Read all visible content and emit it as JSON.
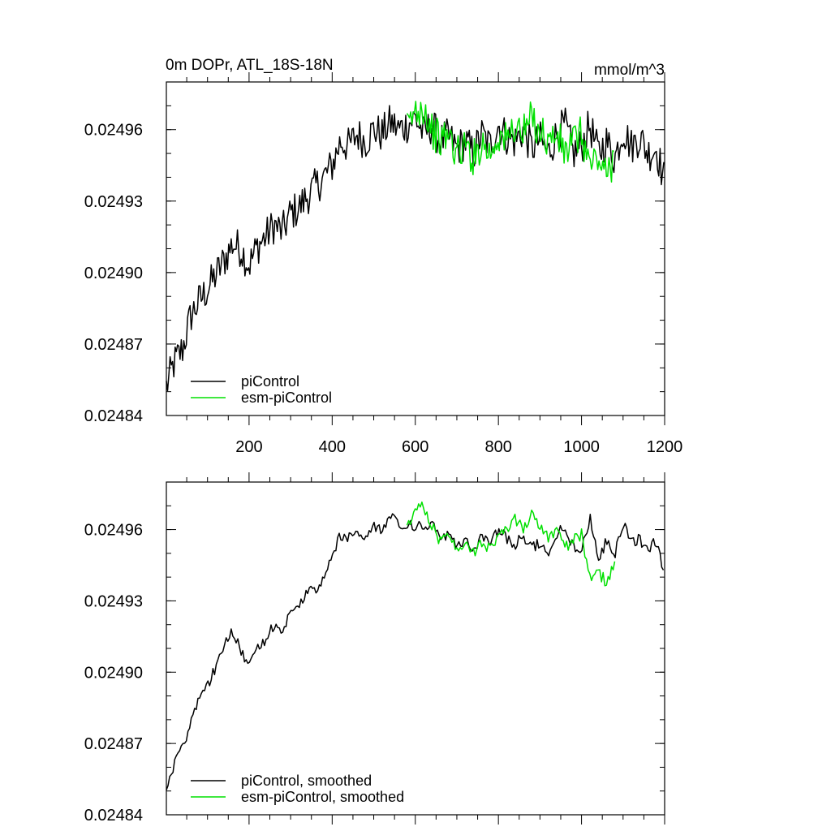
{
  "chart_data": [
    {
      "type": "line",
      "title": "0m DOPr, ATL_18S-18N",
      "units": "mmol/m^3",
      "xlim": [
        1,
        1200
      ],
      "ylim": [
        0.02484,
        0.02498
      ],
      "yticks": [
        0.02484,
        0.02487,
        0.0249,
        0.02493,
        0.02496
      ],
      "ytick_labels": [
        "0.02484",
        "0.02487",
        "0.02490",
        "0.02493",
        "0.02496"
      ],
      "xticks": [
        200,
        400,
        600,
        800,
        1000,
        1200
      ],
      "xtick_labels": [
        "200",
        "400",
        "600",
        "800",
        "1000",
        "1200"
      ],
      "legend_location": "bottom-left",
      "series": [
        {
          "name": "piControl",
          "color": "#000000",
          "smoothed": false,
          "x": [
            1,
            20,
            40,
            60,
            80,
            100,
            120,
            140,
            160,
            180,
            200,
            220,
            240,
            260,
            280,
            300,
            320,
            340,
            360,
            380,
            400,
            420,
            440,
            460,
            480,
            500,
            520,
            540,
            560,
            580,
            600,
            620,
            640,
            660,
            680,
            700,
            720,
            740,
            760,
            780,
            800,
            820,
            840,
            860,
            880,
            900,
            920,
            940,
            960,
            980,
            1000,
            1020,
            1040,
            1060,
            1080,
            1100,
            1120,
            1140,
            1160,
            1180,
            1200
          ],
          "y": [
            0.024852,
            0.024862,
            0.024868,
            0.024882,
            0.024888,
            0.024893,
            0.024899,
            0.024905,
            0.024912,
            0.02491,
            0.024903,
            0.024911,
            0.024915,
            0.02492,
            0.024917,
            0.024925,
            0.024927,
            0.024932,
            0.024936,
            0.02494,
            0.024945,
            0.024955,
            0.024953,
            0.024958,
            0.024955,
            0.02496,
            0.024958,
            0.024963,
            0.02496,
            0.024962,
            0.024965,
            0.024958,
            0.024962,
            0.024955,
            0.024957,
            0.024952,
            0.024955,
            0.02495,
            0.024958,
            0.024953,
            0.024962,
            0.024957,
            0.024955,
            0.02496,
            0.024952,
            0.024956,
            0.02495,
            0.024958,
            0.024962,
            0.02495,
            0.024953,
            0.024962,
            0.02495,
            0.024955,
            0.024948,
            0.02496,
            0.024953,
            0.024957,
            0.02495,
            0.024952,
            0.024938
          ]
        },
        {
          "name": "esm-piControl",
          "color": "#00e000",
          "smoothed": false,
          "x": [
            580,
            600,
            620,
            640,
            660,
            680,
            700,
            720,
            740,
            760,
            780,
            800,
            820,
            840,
            860,
            880,
            900,
            920,
            940,
            960,
            980,
            1000,
            1020,
            1040,
            1060,
            1080
          ],
          "y": [
            0.02496,
            0.024968,
            0.02497,
            0.02496,
            0.024955,
            0.024958,
            0.02495,
            0.024953,
            0.024948,
            0.024955,
            0.02495,
            0.024958,
            0.024955,
            0.024962,
            0.024958,
            0.024965,
            0.02496,
            0.024955,
            0.024958,
            0.02495,
            0.024955,
            0.024958,
            0.024945,
            0.024948,
            0.02494,
            0.02495
          ]
        }
      ]
    },
    {
      "type": "line",
      "title": "",
      "units": "",
      "xlim": [
        1,
        1200
      ],
      "ylim": [
        0.02484,
        0.02498
      ],
      "yticks": [
        0.02484,
        0.02487,
        0.0249,
        0.02493,
        0.02496
      ],
      "ytick_labels": [
        "0.02484",
        "0.02487",
        "0.02490",
        "0.02493",
        "0.02496"
      ],
      "xticks": [
        200,
        400,
        600,
        800,
        1000,
        1200
      ],
      "xtick_labels": [],
      "legend_location": "bottom-left",
      "series": [
        {
          "name": "piControl, smoothed",
          "color": "#000000",
          "smoothed": true,
          "x": [
            1,
            20,
            40,
            60,
            80,
            100,
            120,
            140,
            160,
            180,
            200,
            220,
            240,
            260,
            280,
            300,
            320,
            340,
            360,
            380,
            400,
            420,
            440,
            460,
            480,
            500,
            520,
            540,
            560,
            580,
            600,
            620,
            640,
            660,
            680,
            700,
            720,
            740,
            760,
            780,
            800,
            820,
            840,
            860,
            880,
            900,
            920,
            940,
            960,
            980,
            1000,
            1020,
            1040,
            1060,
            1080,
            1100,
            1120,
            1140,
            1160,
            1180,
            1200
          ],
          "y": [
            0.02485,
            0.024862,
            0.024868,
            0.02488,
            0.02489,
            0.024895,
            0.024902,
            0.024912,
            0.024918,
            0.02491,
            0.024902,
            0.02491,
            0.024914,
            0.02492,
            0.024918,
            0.024925,
            0.024928,
            0.024933,
            0.024935,
            0.02494,
            0.024948,
            0.024958,
            0.024956,
            0.02496,
            0.024956,
            0.024962,
            0.02496,
            0.024965,
            0.024962,
            0.024962,
            0.024962,
            0.02496,
            0.024963,
            0.024955,
            0.024958,
            0.024952,
            0.024956,
            0.02495,
            0.024958,
            0.024955,
            0.02496,
            0.024956,
            0.024954,
            0.024958,
            0.024952,
            0.024955,
            0.02495,
            0.024957,
            0.024962,
            0.024952,
            0.024953,
            0.024965,
            0.024948,
            0.024955,
            0.02495,
            0.024963,
            0.024955,
            0.024956,
            0.024952,
            0.024955,
            0.02494
          ]
        },
        {
          "name": "esm-piControl, smoothed",
          "color": "#00e000",
          "smoothed": true,
          "x": [
            580,
            600,
            620,
            640,
            660,
            680,
            700,
            720,
            740,
            760,
            780,
            800,
            820,
            840,
            860,
            880,
            900,
            920,
            940,
            960,
            980,
            1000,
            1020,
            1040,
            1060,
            1080
          ],
          "y": [
            0.02496,
            0.024968,
            0.02497,
            0.024962,
            0.024955,
            0.024957,
            0.024952,
            0.024954,
            0.02495,
            0.024955,
            0.024952,
            0.024958,
            0.02496,
            0.024965,
            0.02496,
            0.024966,
            0.024962,
            0.024956,
            0.02496,
            0.024952,
            0.024956,
            0.024958,
            0.02494,
            0.024942,
            0.024938,
            0.024945
          ]
        }
      ]
    }
  ]
}
